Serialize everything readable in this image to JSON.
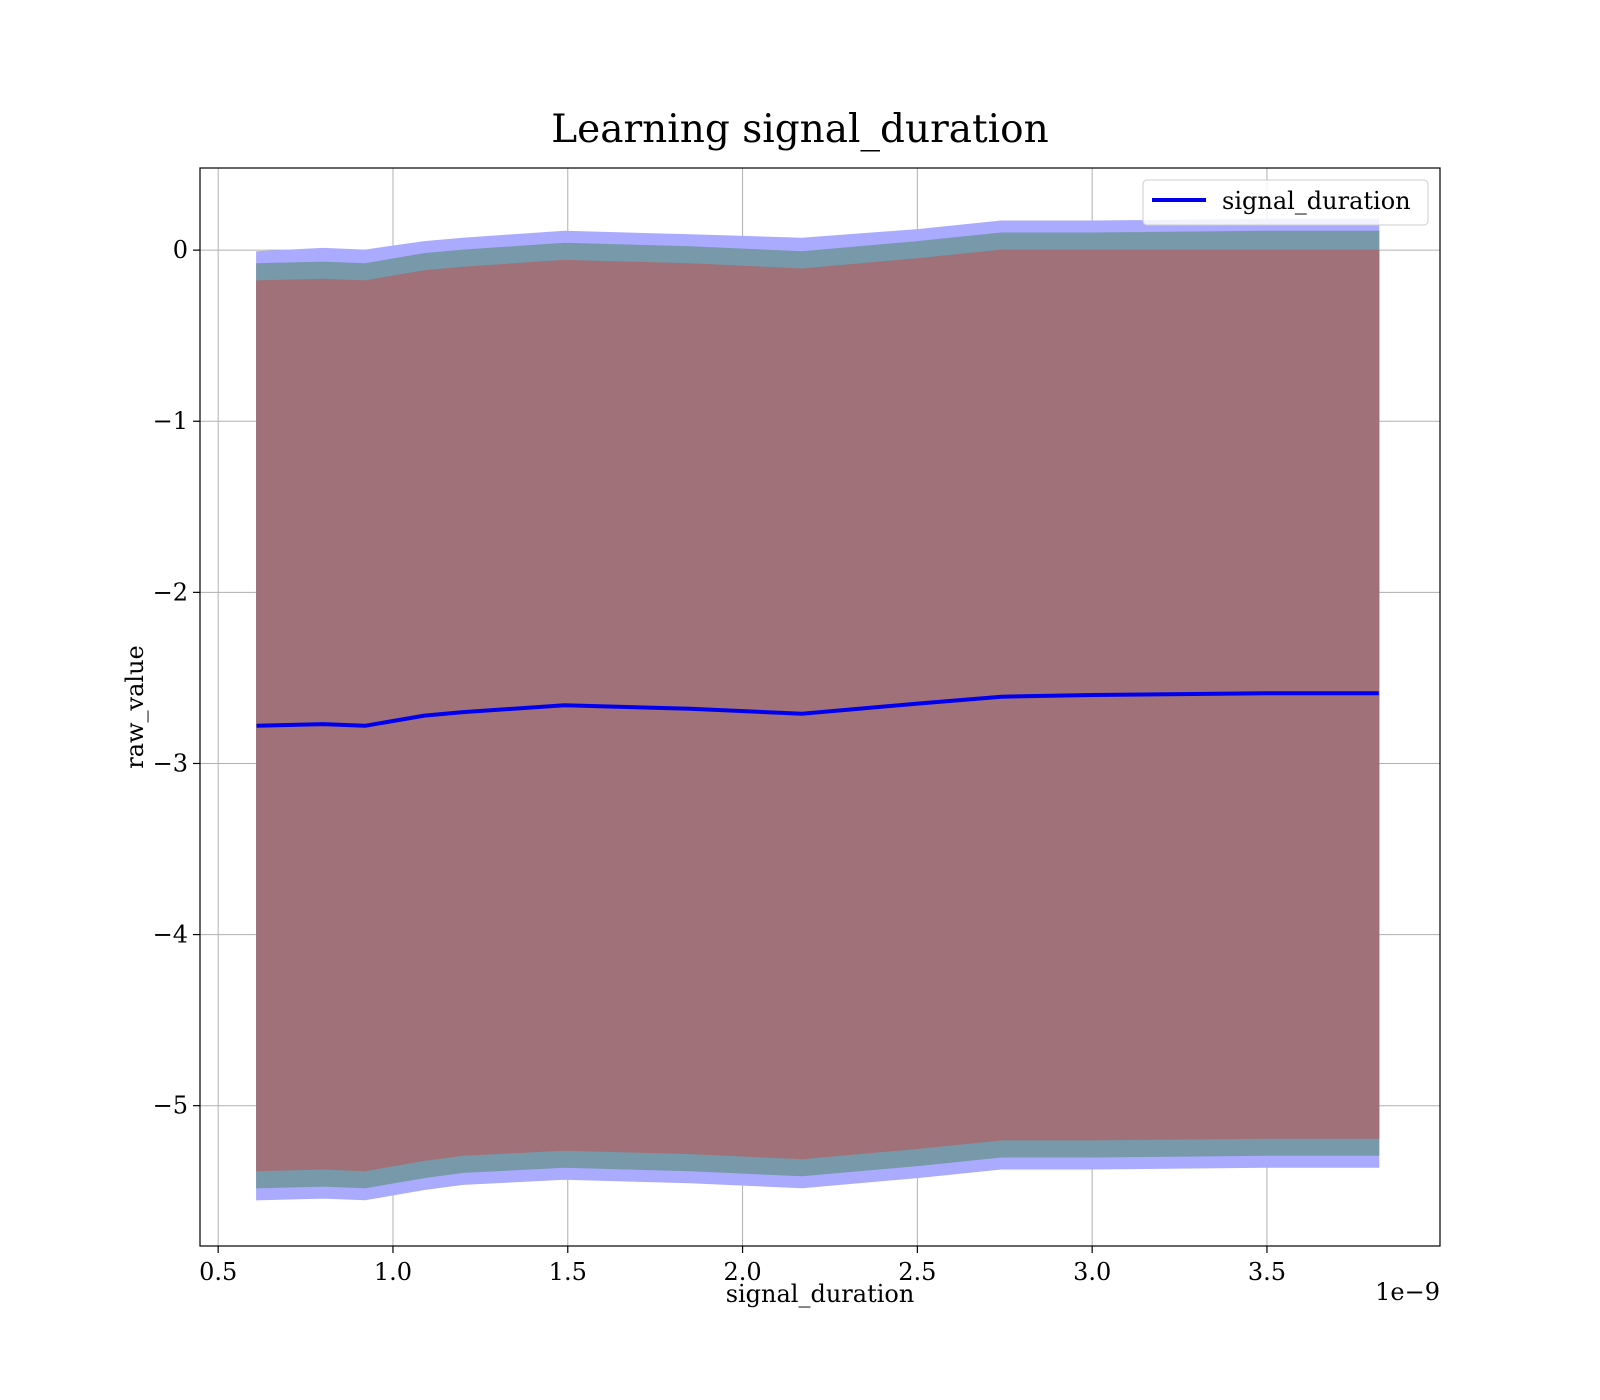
{
  "chart_data": {
    "type": "line",
    "title": "Learning signal_duration",
    "xlabel": "signal_duration",
    "ylabel": "raw_value",
    "x_offset_label": "1e−9",
    "xlim": [
      0.448,
      3.995
    ],
    "ylim": [
      -5.82,
      0.48
    ],
    "x_ticks": [
      0.5,
      1.0,
      1.5,
      2.0,
      2.5,
      3.0,
      3.5
    ],
    "x_tick_labels": [
      "0.5",
      "1.0",
      "1.5",
      "2.0",
      "2.5",
      "3.0",
      "3.5"
    ],
    "y_ticks": [
      0,
      -1,
      -2,
      -3,
      -4,
      -5
    ],
    "y_tick_labels": [
      "0",
      "−1",
      "−2",
      "−3",
      "−4",
      "−5"
    ],
    "grid": true,
    "legend_position": "top-right",
    "x": [
      0.61,
      0.8,
      0.92,
      1.09,
      1.2,
      1.49,
      1.85,
      2.17,
      2.5,
      2.74,
      3.0,
      3.5,
      3.82
    ],
    "series": [
      {
        "name": "signal_duration",
        "color": "#0000ee",
        "values": [
          -2.78,
          -2.77,
          -2.78,
          -2.72,
          -2.7,
          -2.66,
          -2.68,
          -2.71,
          -2.65,
          -2.61,
          -2.6,
          -2.59,
          -2.59
        ]
      }
    ],
    "bands": [
      {
        "color": "#aaaaff",
        "upper": [
          -0.01,
          0.01,
          0.0,
          0.05,
          0.07,
          0.11,
          0.09,
          0.07,
          0.12,
          0.17,
          0.17,
          0.18,
          0.18
        ],
        "lower": [
          -5.55,
          -5.54,
          -5.55,
          -5.49,
          -5.46,
          -5.43,
          -5.45,
          -5.48,
          -5.42,
          -5.37,
          -5.37,
          -5.36,
          -5.36
        ]
      },
      {
        "color": "#7799aa",
        "upper": [
          -0.08,
          -0.07,
          -0.08,
          -0.02,
          0.0,
          0.04,
          0.02,
          -0.01,
          0.05,
          0.1,
          0.1,
          0.11,
          0.11
        ],
        "lower": [
          -5.48,
          -5.47,
          -5.48,
          -5.42,
          -5.39,
          -5.36,
          -5.38,
          -5.41,
          -5.35,
          -5.3,
          -5.3,
          -5.29,
          -5.29
        ]
      },
      {
        "color": "#a07178",
        "upper": [
          -0.18,
          -0.17,
          -0.18,
          -0.12,
          -0.1,
          -0.06,
          -0.08,
          -0.11,
          -0.05,
          0.0,
          0.0,
          0.0,
          0.0
        ],
        "lower": [
          -5.38,
          -5.37,
          -5.38,
          -5.32,
          -5.29,
          -5.26,
          -5.28,
          -5.31,
          -5.25,
          -5.2,
          -5.2,
          -5.19,
          -5.19
        ]
      }
    ]
  }
}
